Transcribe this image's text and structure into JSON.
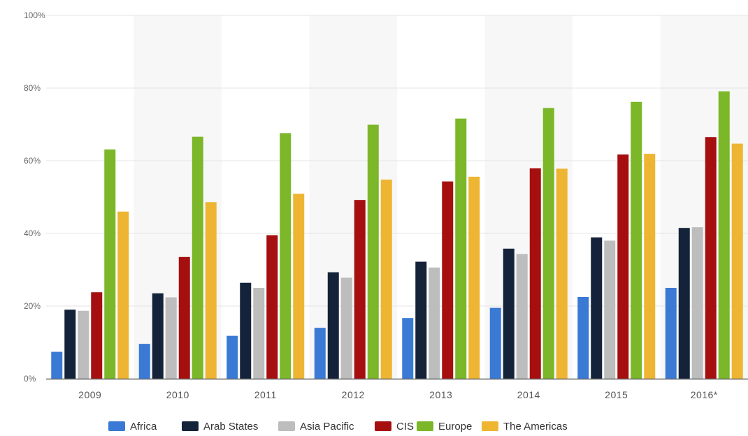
{
  "chart_data": {
    "type": "bar",
    "title": "",
    "xlabel": "",
    "ylabel": "",
    "categories": [
      "2009",
      "2010",
      "2011",
      "2012",
      "2013",
      "2014",
      "2015",
      "2016*"
    ],
    "ylim": [
      0,
      100
    ],
    "yticks": [
      0,
      20,
      40,
      60,
      80,
      100
    ],
    "ytick_labels": [
      "0%",
      "20%",
      "40%",
      "60%",
      "80%",
      "100%"
    ],
    "grid": true,
    "legend_position": "bottom",
    "series": [
      {
        "name": "Africa",
        "color": "#3a7ad5",
        "values": [
          7.4,
          9.6,
          11.8,
          14.0,
          16.7,
          19.5,
          22.5,
          25.0
        ]
      },
      {
        "name": "Arab States",
        "color": "#142339",
        "values": [
          19.0,
          23.5,
          26.4,
          29.3,
          32.2,
          35.8,
          38.9,
          41.5
        ]
      },
      {
        "name": "Asia Pacific",
        "color": "#bdbdbd",
        "values": [
          18.7,
          22.4,
          25.0,
          27.8,
          30.6,
          34.3,
          38.0,
          41.7
        ]
      },
      {
        "name": "CIS",
        "color": "#a50f0f",
        "values": [
          23.8,
          33.5,
          39.5,
          49.2,
          54.3,
          57.9,
          61.7,
          66.5
        ]
      },
      {
        "name": "Europe",
        "color": "#7bb728",
        "values": [
          63.1,
          66.6,
          67.6,
          69.9,
          71.6,
          74.5,
          76.2,
          79.1
        ]
      },
      {
        "name": "The Americas",
        "color": "#eeb533",
        "values": [
          46.0,
          48.6,
          50.9,
          54.8,
          55.6,
          57.8,
          61.9,
          64.7
        ]
      }
    ]
  }
}
